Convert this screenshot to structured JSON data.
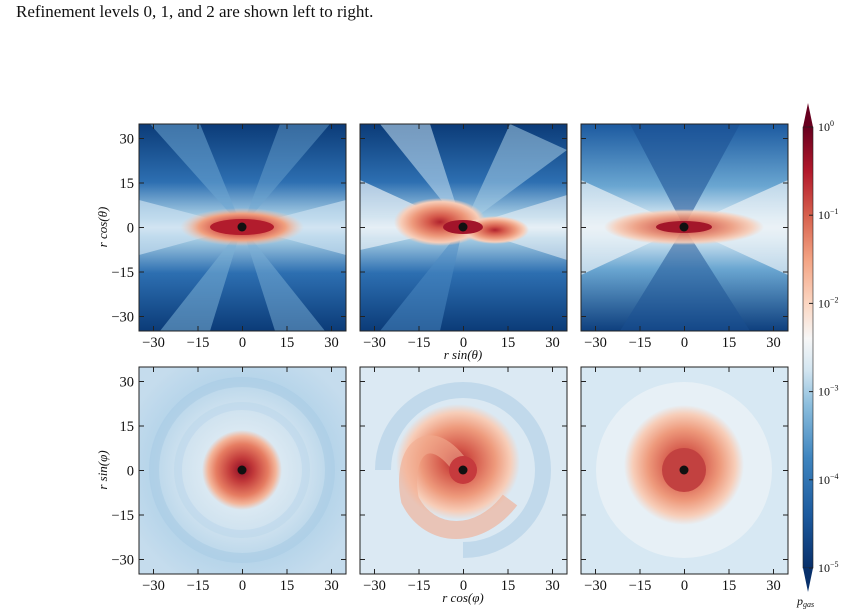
{
  "caption": "Refinement levels 0, 1, and 2 are shown left to right.",
  "figure": {
    "tick_values": [
      "−30",
      "−15",
      "0",
      "15",
      "30"
    ],
    "y_ticks": [
      "30",
      "15",
      "0",
      "−15",
      "−30"
    ],
    "top_row": {
      "xlabel": "r sin(θ)",
      "ylabel": "r cos(θ)"
    },
    "bottom_row": {
      "xlabel": "r cos(φ)",
      "ylabel": "r sin(φ)"
    },
    "colorbar": {
      "ticks": [
        {
          "base": "10",
          "exp": "0"
        },
        {
          "base": "10",
          "exp": "−1"
        },
        {
          "base": "10",
          "exp": "−2"
        },
        {
          "base": "10",
          "exp": "−3"
        },
        {
          "base": "10",
          "exp": "−4"
        },
        {
          "base": "10",
          "exp": "−5"
        }
      ],
      "label": "p",
      "label_sub": "gas",
      "colors": [
        "#08306b",
        "#2166ac",
        "#4393c3",
        "#92c5de",
        "#d1e5f0",
        "#f7f7f7",
        "#fddbc7",
        "#f4a582",
        "#d6604d",
        "#b2182b",
        "#67001f"
      ]
    },
    "panels": [
      {
        "id": "top-level-0"
      },
      {
        "id": "top-level-1"
      },
      {
        "id": "top-level-2"
      },
      {
        "id": "bottom-level-0"
      },
      {
        "id": "bottom-level-1"
      },
      {
        "id": "bottom-level-2"
      }
    ]
  }
}
